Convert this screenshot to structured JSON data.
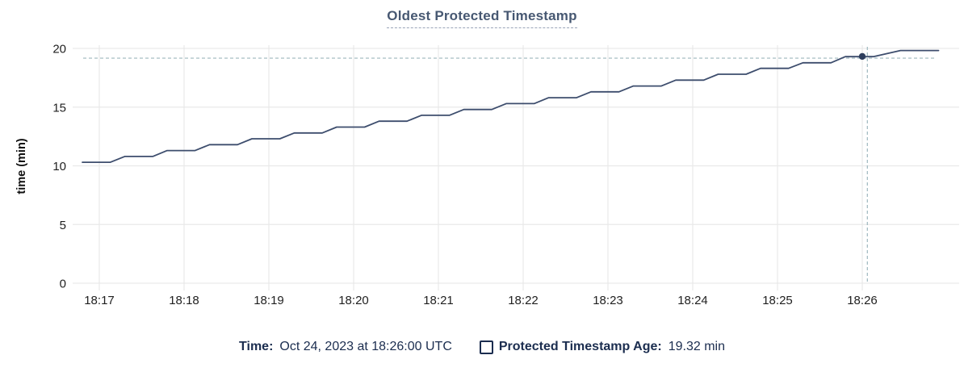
{
  "chart_data": {
    "type": "line",
    "title": "Oldest Protected Timestamp",
    "xlabel": "",
    "ylabel": "time (min)",
    "ylim": [
      0,
      20
    ],
    "yticks": [
      0,
      5,
      10,
      15,
      20
    ],
    "xticks": [
      {
        "t": 0,
        "label": "18:17"
      },
      {
        "t": 1,
        "label": "18:18"
      },
      {
        "t": 2,
        "label": "18:19"
      },
      {
        "t": 3,
        "label": "18:20"
      },
      {
        "t": 4,
        "label": "18:21"
      },
      {
        "t": 5,
        "label": "18:22"
      },
      {
        "t": 6,
        "label": "18:23"
      },
      {
        "t": 7,
        "label": "18:24"
      },
      {
        "t": 8,
        "label": "18:25"
      },
      {
        "t": 9,
        "label": "18:26"
      }
    ],
    "x_unit": "minutes after 18:17",
    "grid": true,
    "legend_position": "bottom",
    "series": [
      {
        "name": "Protected Timestamp Age",
        "color": "#3d4d6d",
        "points": [
          [
            -0.2,
            10.3
          ],
          [
            0.13,
            10.3
          ],
          [
            0.3,
            10.8
          ],
          [
            0.63,
            10.8
          ],
          [
            0.8,
            11.3
          ],
          [
            1.13,
            11.3
          ],
          [
            1.3,
            11.8
          ],
          [
            1.63,
            11.8
          ],
          [
            1.8,
            12.3
          ],
          [
            2.13,
            12.3
          ],
          [
            2.3,
            12.8
          ],
          [
            2.63,
            12.8
          ],
          [
            2.8,
            13.3
          ],
          [
            3.13,
            13.3
          ],
          [
            3.3,
            13.8
          ],
          [
            3.63,
            13.8
          ],
          [
            3.8,
            14.3
          ],
          [
            4.13,
            14.3
          ],
          [
            4.3,
            14.8
          ],
          [
            4.63,
            14.8
          ],
          [
            4.8,
            15.3
          ],
          [
            5.13,
            15.3
          ],
          [
            5.3,
            15.8
          ],
          [
            5.63,
            15.8
          ],
          [
            5.8,
            16.3
          ],
          [
            6.13,
            16.3
          ],
          [
            6.3,
            16.8
          ],
          [
            6.63,
            16.8
          ],
          [
            6.8,
            17.3
          ],
          [
            7.13,
            17.3
          ],
          [
            7.3,
            17.8
          ],
          [
            7.63,
            17.8
          ],
          [
            7.8,
            18.3
          ],
          [
            8.13,
            18.3
          ],
          [
            8.3,
            18.78
          ],
          [
            8.63,
            18.78
          ],
          [
            8.8,
            19.3
          ],
          [
            9.13,
            19.3
          ],
          [
            9.45,
            19.82
          ],
          [
            9.9,
            19.82
          ]
        ]
      }
    ],
    "hover_point": {
      "t": 9,
      "value": 19.32,
      "time_label": "Oct 24, 2023 at 18:26:00 UTC",
      "value_label": "19.32 min"
    },
    "crosshair": {
      "t": 9.06,
      "value": 19.17
    }
  },
  "footer": {
    "time_label": "Time:",
    "time_value": "Oct 24, 2023 at 18:26:00 UTC",
    "series_label": "Protected Timestamp Age:",
    "series_value": "19.32 min"
  },
  "colors": {
    "title": "#475872",
    "series_line": "#3d4d6d",
    "marker": "#2e3e5d",
    "crosshair": "#9db7be",
    "grid": "#e9e9e9",
    "axis_text": "#1f1f1f",
    "footer_text": "#1b2d4f"
  }
}
